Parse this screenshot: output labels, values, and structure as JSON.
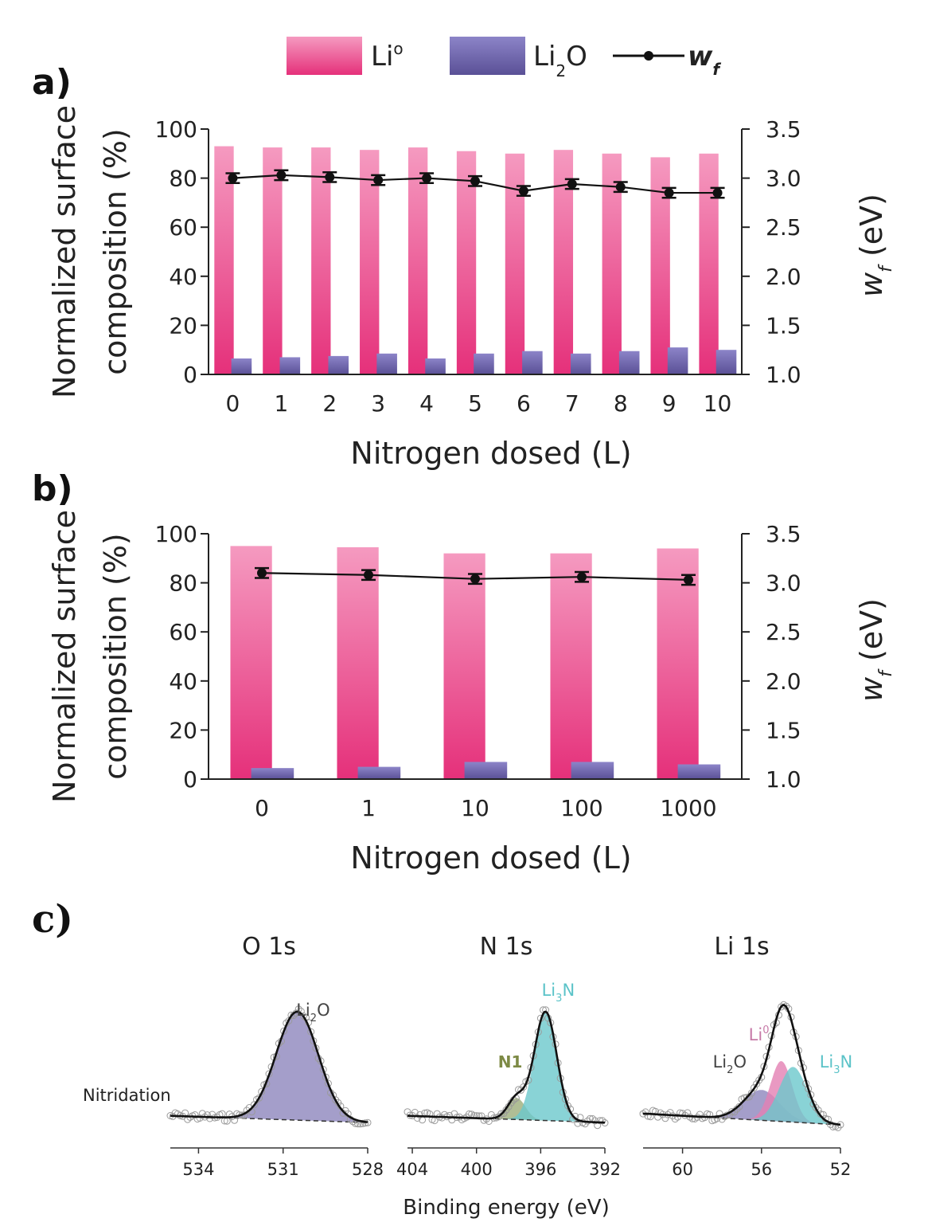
{
  "legend": {
    "li0_label": "Li",
    "li0_sup": "o",
    "li2o_label": "Li",
    "li2o_sub": "2",
    "li2o_tail": "O",
    "wf_label": "w",
    "wf_sub": "f"
  },
  "colors": {
    "li0_top": "#f59ac0",
    "li0_bottom": "#e5307a",
    "li2o_top": "#8c84c8",
    "li2o_bottom": "#5a5096",
    "wf_line": "#111111",
    "li3n_fill": "#6cc8cc",
    "n1_fill": "#9cae7a",
    "li0_xps_fill": "#e37fb3",
    "li2o_xps_fill": "#8d86bd"
  },
  "chart_data": [
    {
      "panel": "a)",
      "type": "bar",
      "categories": [
        "0",
        "1",
        "2",
        "3",
        "4",
        "5",
        "6",
        "7",
        "8",
        "9",
        "10"
      ],
      "series": [
        {
          "name": "Li°",
          "values": [
            93,
            92.5,
            92.5,
            91.5,
            92.5,
            91,
            90,
            91.5,
            90,
            88.5,
            90
          ]
        },
        {
          "name": "Li2O",
          "values": [
            6.5,
            7,
            7.5,
            8.5,
            6.5,
            8.5,
            9.5,
            8.5,
            9.5,
            11,
            10
          ]
        },
        {
          "name": "wf",
          "type": "line",
          "axis": "right",
          "values": [
            3.0,
            3.03,
            3.01,
            2.98,
            3.0,
            2.97,
            2.87,
            2.94,
            2.91,
            2.85,
            2.85
          ],
          "error": [
            0.05,
            0.05,
            0.05,
            0.05,
            0.05,
            0.05,
            0.05,
            0.05,
            0.05,
            0.05,
            0.05
          ]
        }
      ],
      "xlabel": "Nitrogen dosed (L)",
      "ylabel_line1": "Normalized surface",
      "ylabel_line2": "composition (%)",
      "y2label": "w",
      "y2label_sub": "f",
      "y2label_tail": "(eV)",
      "ylim": [
        0,
        100
      ],
      "yticks": [
        "0",
        "20",
        "40",
        "60",
        "80",
        "100"
      ],
      "y2lim": [
        1.0,
        3.5
      ],
      "y2ticks": [
        "1.0",
        "1.5",
        "2.0",
        "2.5",
        "3.0",
        "3.5"
      ]
    },
    {
      "panel": "b)",
      "type": "bar",
      "categories": [
        "0",
        "1",
        "10",
        "100",
        "1000"
      ],
      "series": [
        {
          "name": "Li°",
          "values": [
            95,
            94.5,
            92,
            92,
            94
          ]
        },
        {
          "name": "Li2O",
          "values": [
            4.5,
            5,
            7,
            7,
            6
          ]
        },
        {
          "name": "wf",
          "type": "line",
          "axis": "right",
          "values": [
            3.1,
            3.08,
            3.04,
            3.06,
            3.03
          ],
          "error": [
            0.05,
            0.05,
            0.05,
            0.05,
            0.05
          ]
        }
      ],
      "xlabel": "Nitrogen dosed (L)",
      "ylabel_line1": "Normalized surface",
      "ylabel_line2": "composition (%)",
      "y2label": "w",
      "y2label_sub": "f",
      "y2label_tail": "(eV)",
      "ylim": [
        0,
        100
      ],
      "yticks": [
        "0",
        "20",
        "40",
        "60",
        "80",
        "100"
      ],
      "y2lim": [
        1.0,
        3.5
      ],
      "y2ticks": [
        "1.0",
        "1.5",
        "2.0",
        "2.5",
        "3.0",
        "3.5"
      ]
    },
    {
      "panel": "c)",
      "type": "line",
      "row_label": "Nitridation",
      "xlabel": "Binding energy (eV)",
      "subplots": [
        {
          "title": "O 1s",
          "xlim": [
            535,
            528
          ],
          "xticks": [
            "534",
            "531",
            "528"
          ],
          "xtick_values": [
            534,
            531,
            528
          ],
          "peaks": [
            {
              "label": "Li",
              "label_sub": "2",
              "label_tail": "O",
              "center": 530.5,
              "sigma": 0.75,
              "amp": 1.0,
              "color": "li2o_xps_fill"
            }
          ],
          "baseline": [
            0.08,
            0.02
          ]
        },
        {
          "title": "N 1s",
          "xlim": [
            404.3,
            392
          ],
          "xticks": [
            "404",
            "400",
            "396",
            "392"
          ],
          "xtick_values": [
            404,
            400,
            396,
            392
          ],
          "peaks": [
            {
              "label": "N1",
              "center": 397.5,
              "sigma": 0.55,
              "amp": 0.2,
              "color": "n1_fill"
            },
            {
              "label": "Li",
              "label_sub": "3",
              "label_tail": "N",
              "center": 395.7,
              "sigma": 0.7,
              "amp": 1.0,
              "color": "li3n_fill"
            }
          ],
          "baseline": [
            0.08,
            0.02
          ]
        },
        {
          "title": "Li 1s",
          "xlim": [
            62,
            52
          ],
          "xticks": [
            "60",
            "56",
            "52"
          ],
          "xtick_values": [
            60,
            56,
            52
          ],
          "peaks": [
            {
              "label": "Li",
              "label_sub": "2",
              "label_tail": "O",
              "center": 56.0,
              "sigma": 0.9,
              "amp": 0.28,
              "color": "li2o_xps_fill"
            },
            {
              "label": "Li",
              "label_sup": "0",
              "center": 55.0,
              "sigma": 0.55,
              "amp": 0.55,
              "color": "li0_xps_fill"
            },
            {
              "label": "Li",
              "label_sub": "3",
              "label_tail": "N",
              "center": 54.4,
              "sigma": 0.7,
              "amp": 0.5,
              "color": "li3n_fill"
            }
          ],
          "baseline": [
            0.1,
            0.0
          ]
        }
      ]
    }
  ]
}
